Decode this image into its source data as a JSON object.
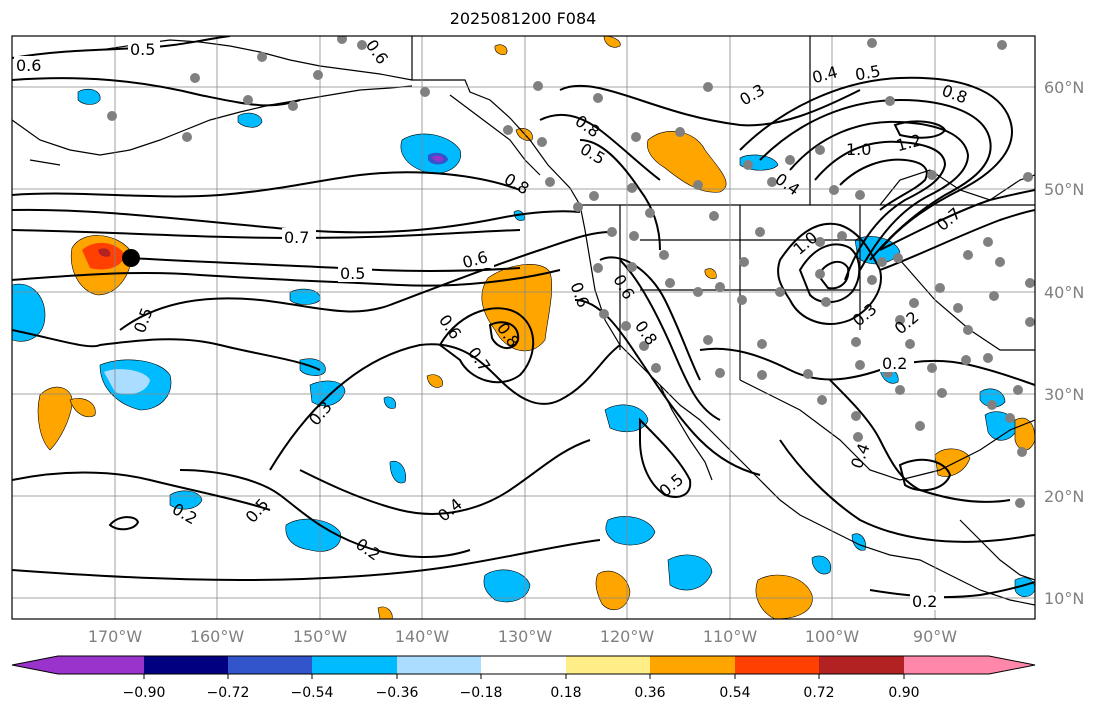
{
  "title": "2025081200 F084",
  "map": {
    "lon_range": [
      -180,
      -80
    ],
    "lat_range": [
      8,
      65
    ],
    "lat_ticks": [
      {
        "value": 10,
        "label": "10°N"
      },
      {
        "value": 20,
        "label": "20°N"
      },
      {
        "value": 30,
        "label": "30°N"
      },
      {
        "value": 40,
        "label": "40°N"
      },
      {
        "value": 50,
        "label": "50°N"
      },
      {
        "value": 60,
        "label": "60°N"
      }
    ],
    "lon_ticks": [
      {
        "value": -170,
        "label": "170°W"
      },
      {
        "value": -160,
        "label": "160°W"
      },
      {
        "value": -150,
        "label": "150°W"
      },
      {
        "value": -140,
        "label": "140°W"
      },
      {
        "value": -130,
        "label": "130°W"
      },
      {
        "value": -120,
        "label": "120°W"
      },
      {
        "value": -110,
        "label": "110°W"
      },
      {
        "value": -100,
        "label": "100°W"
      },
      {
        "value": -90,
        "label": "90°W"
      }
    ],
    "grid": true,
    "contour_labels": [
      "0.6",
      "0.5",
      "0.6",
      "0.7",
      "0.3",
      "0.4",
      "0.5",
      "0.8",
      "0.8",
      "0.5",
      "0.8",
      "1.0",
      "1.2",
      "0.4",
      "0.7",
      "0.5",
      "0.6",
      "1.0",
      "0.6",
      "0.8",
      "0.5",
      "0.6",
      "0.6",
      "0.7",
      "0.8",
      "0.3",
      "0.2",
      "0.3",
      "0.2",
      "0.5",
      "0.2",
      "0.4",
      "0.2",
      "0.5",
      "0.2",
      "0.4"
    ],
    "marker_color": "#000000",
    "station_dot_color": "#808080"
  },
  "colorbar": {
    "colors": [
      "#9933cc",
      "#000080",
      "#3355cc",
      "#00bbff",
      "#aaddff",
      "#ffffff",
      "#ffee88",
      "#ffa500",
      "#ff4000",
      "#b22222",
      "#ff88aa"
    ],
    "tick_labels": [
      "−0.90",
      "−0.72",
      "−0.54",
      "−0.36",
      "−0.18",
      "0.18",
      "0.36",
      "0.54",
      "0.72",
      "0.90"
    ]
  }
}
